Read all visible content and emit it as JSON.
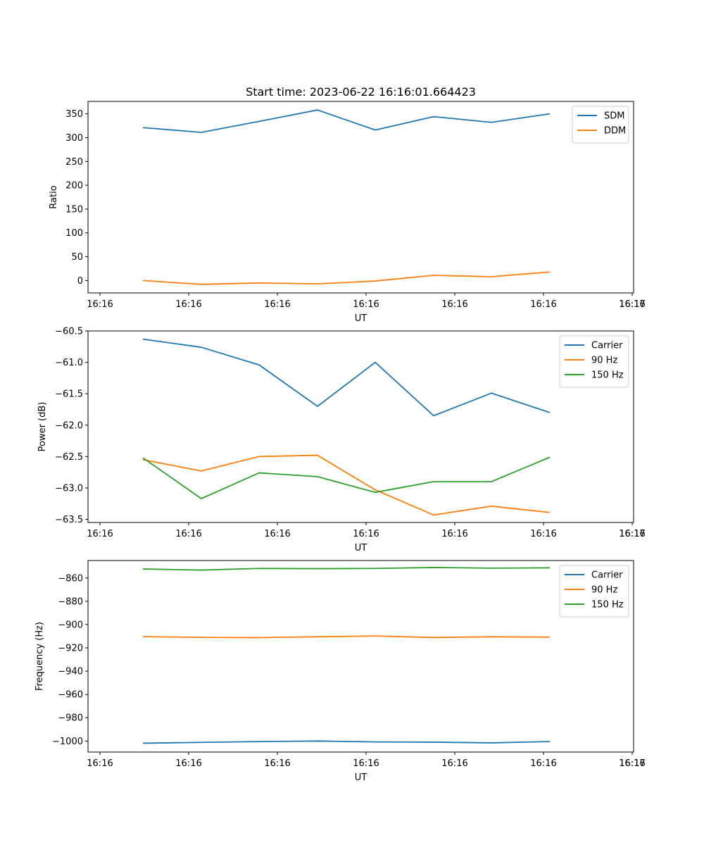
{
  "chart_data": [
    {
      "type": "line",
      "title": "Start time: 2023-06-22 16:16:01.664423",
      "xlabel": "UT",
      "ylabel": "Ratio",
      "x_tick_labels": [
        "16:16",
        "16:16",
        "16:16",
        "16:16",
        "16:16",
        "16:16",
        "16:16",
        "16:17"
      ],
      "y_ticks": [
        0,
        50,
        100,
        150,
        200,
        250,
        300,
        350
      ],
      "ylim": [
        -26,
        376
      ],
      "grid": false,
      "legend_position": "top-right",
      "series": [
        {
          "name": "SDM",
          "color": "#1f77b4",
          "values": [
            321,
            311,
            334,
            358,
            316,
            344,
            332,
            350
          ]
        },
        {
          "name": "DDM",
          "color": "#ff7f0e",
          "values": [
            0,
            -8,
            -5,
            -7,
            -1,
            11,
            8,
            18
          ]
        }
      ]
    },
    {
      "type": "line",
      "title": "",
      "xlabel": "UT",
      "ylabel": "Power (dB)",
      "x_tick_labels": [
        "16:16",
        "16:16",
        "16:16",
        "16:16",
        "16:16",
        "16:16",
        "16:16",
        "16:17"
      ],
      "y_ticks": [
        -60.5,
        -61.0,
        -61.5,
        -62.0,
        -62.5,
        -63.0,
        -63.5
      ],
      "y_tick_labels": [
        "−60.5",
        "−61.0",
        "−61.5",
        "−62.0",
        "−62.5",
        "−63.0",
        "−63.5"
      ],
      "ylim": [
        -63.55,
        -60.5
      ],
      "grid": false,
      "legend_position": "top-right",
      "series": [
        {
          "name": "Carrier",
          "color": "#1f77b4",
          "values": [
            -60.63,
            -60.76,
            -61.04,
            -61.7,
            -61.0,
            -61.85,
            -61.49,
            -61.8
          ]
        },
        {
          "name": "90 Hz",
          "color": "#ff7f0e",
          "values": [
            -62.55,
            -62.73,
            -62.5,
            -62.48,
            -63.03,
            -63.43,
            -63.29,
            -63.39
          ]
        },
        {
          "name": "150 Hz",
          "color": "#2ca02c",
          "values": [
            -62.52,
            -63.17,
            -62.76,
            -62.82,
            -63.07,
            -62.9,
            -62.9,
            -62.51
          ]
        }
      ]
    },
    {
      "type": "line",
      "title": "",
      "xlabel": "UT",
      "ylabel": "Frequency (Hz)",
      "x_tick_labels": [
        "16:16",
        "16:16",
        "16:16",
        "16:16",
        "16:16",
        "16:16",
        "16:16",
        "16:17"
      ],
      "y_ticks": [
        -860,
        -880,
        -900,
        -920,
        -940,
        -960,
        -980,
        -1000
      ],
      "y_tick_labels": [
        "−860",
        "−880",
        "−900",
        "−920",
        "−940",
        "−960",
        "−980",
        "−1000"
      ],
      "ylim": [
        -1009.5,
        -845
      ],
      "grid": false,
      "legend_position": "top-right",
      "series": [
        {
          "name": "Carrier",
          "color": "#1f77b4",
          "values": [
            -1001.9,
            -1001.2,
            -1000.5,
            -1000.0,
            -1000.8,
            -1001.0,
            -1001.6,
            -1000.5
          ]
        },
        {
          "name": "90 Hz",
          "color": "#ff7f0e",
          "values": [
            -910.4,
            -911.0,
            -911.2,
            -910.5,
            -909.8,
            -911.1,
            -910.5,
            -910.8
          ]
        },
        {
          "name": "150 Hz",
          "color": "#2ca02c",
          "values": [
            -852.3,
            -853.2,
            -851.8,
            -852.0,
            -851.8,
            -851.0,
            -851.6,
            -851.3
          ]
        }
      ]
    }
  ]
}
